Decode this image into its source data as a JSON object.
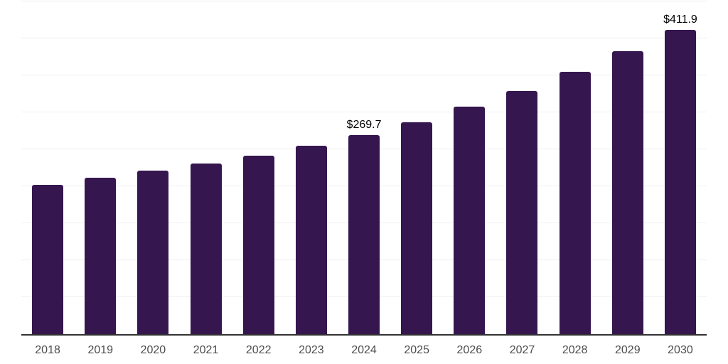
{
  "chart_data": {
    "type": "bar",
    "title": "",
    "xlabel": "",
    "ylabel": "",
    "categories": [
      "2018",
      "2019",
      "2020",
      "2021",
      "2022",
      "2023",
      "2024",
      "2025",
      "2026",
      "2027",
      "2028",
      "2029",
      "2030"
    ],
    "values": [
      202.4,
      211.5,
      221.0,
      230.6,
      241.8,
      255.2,
      269.7,
      287.0,
      308.1,
      329.3,
      354.6,
      382.7,
      411.9
    ],
    "data_labels": [
      "",
      "",
      "",
      "",
      "",
      "",
      "$269.7",
      "",
      "",
      "",
      "",
      "",
      "$411.9"
    ],
    "ylim": [
      0,
      450
    ],
    "grid_step": 50,
    "grid": true,
    "legend": false,
    "axis_ticks_y_visible": false,
    "colors": {
      "bar": "#36164e",
      "axis_line": "#333333",
      "gridline": "#efefef",
      "tick_label": "#4d4d4d",
      "value_label": "#000000",
      "background": "#ffffff"
    }
  }
}
